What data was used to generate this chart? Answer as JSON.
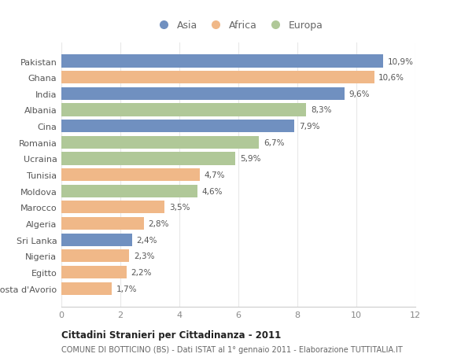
{
  "countries": [
    "Pakistan",
    "Ghana",
    "India",
    "Albania",
    "Cina",
    "Romania",
    "Ucraina",
    "Tunisia",
    "Moldova",
    "Marocco",
    "Algeria",
    "Sri Lanka",
    "Nigeria",
    "Egitto",
    "Costa d'Avorio"
  ],
  "values": [
    10.9,
    10.6,
    9.6,
    8.3,
    7.9,
    6.7,
    5.9,
    4.7,
    4.6,
    3.5,
    2.8,
    2.4,
    2.3,
    2.2,
    1.7
  ],
  "labels": [
    "10,9%",
    "10,6%",
    "9,6%",
    "8,3%",
    "7,9%",
    "6,7%",
    "5,9%",
    "4,7%",
    "4,6%",
    "3,5%",
    "2,8%",
    "2,4%",
    "2,3%",
    "2,2%",
    "1,7%"
  ],
  "continents": [
    "Asia",
    "Africa",
    "Asia",
    "Europa",
    "Asia",
    "Europa",
    "Europa",
    "Africa",
    "Europa",
    "Africa",
    "Africa",
    "Asia",
    "Africa",
    "Africa",
    "Africa"
  ],
  "colors": {
    "Asia": "#7090c0",
    "Africa": "#f0b888",
    "Europa": "#b0c898"
  },
  "title": "Cittadini Stranieri per Cittadinanza - 2011",
  "subtitle": "COMUNE DI BOTTICINO (BS) - Dati ISTAT al 1° gennaio 2011 - Elaborazione TUTTITALIA.IT",
  "xlim": [
    0,
    12
  ],
  "xticks": [
    0,
    2,
    4,
    6,
    8,
    10,
    12
  ],
  "background_color": "#ffffff",
  "plot_bg_color": "#ffffff",
  "grid_color": "#e8e8e8",
  "bar_height": 0.78,
  "label_color": "#555555",
  "ytick_color": "#555555",
  "xtick_color": "#888888"
}
